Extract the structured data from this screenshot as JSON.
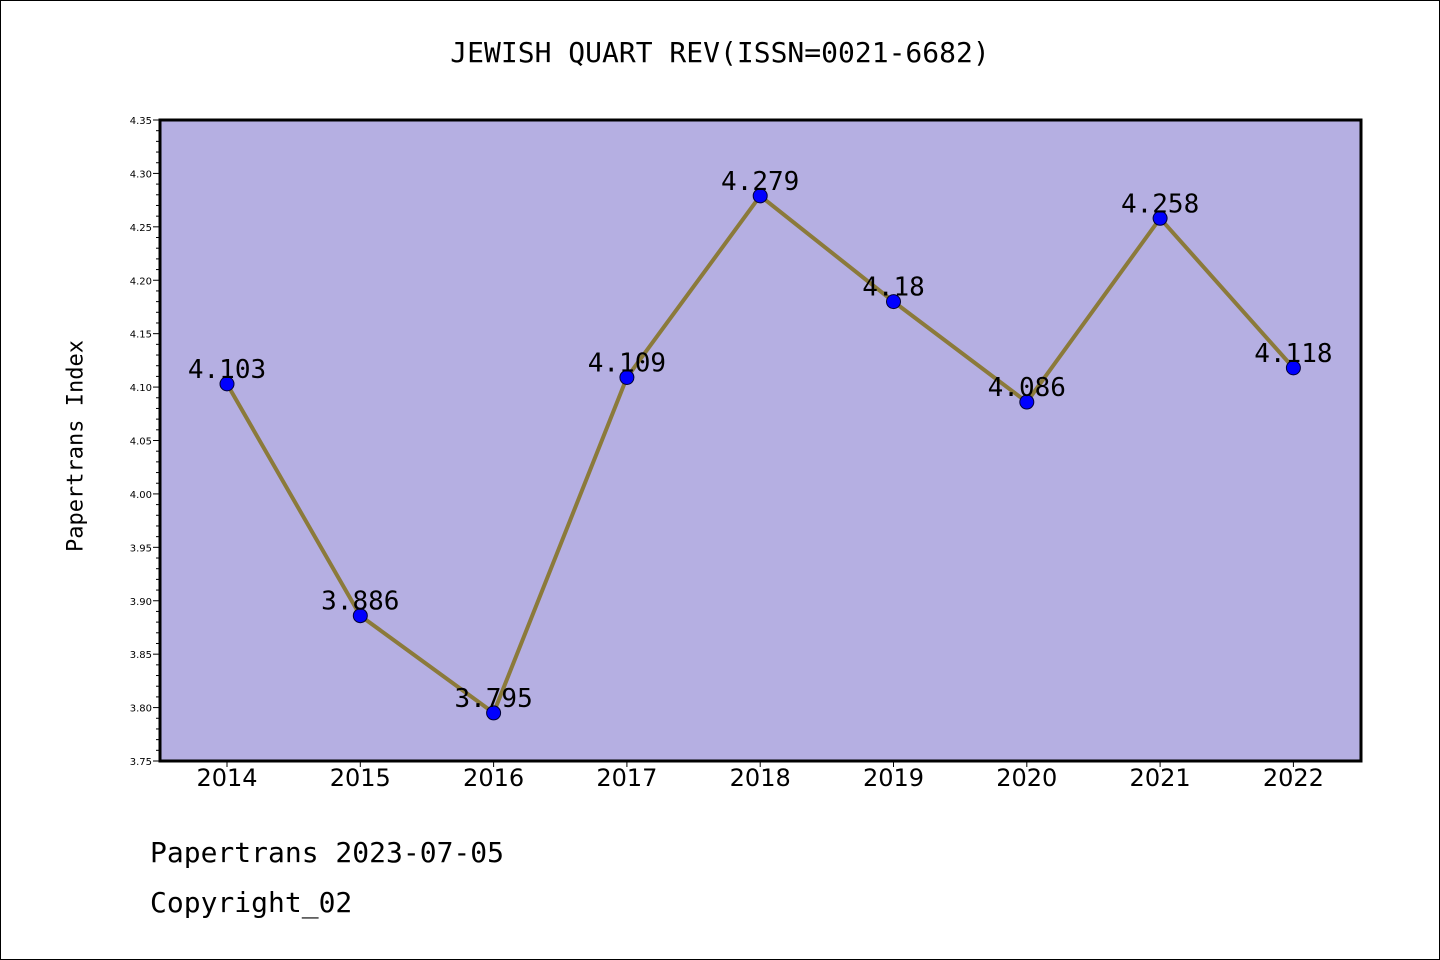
{
  "chart_data": {
    "type": "line",
    "title": "JEWISH QUART REV(ISSN=0021-6682)",
    "xlabel": "",
    "ylabel": "Papertrans Index",
    "categories": [
      "2014",
      "2015",
      "2016",
      "2017",
      "2018",
      "2019",
      "2020",
      "2021",
      "2022"
    ],
    "series": [
      {
        "values": [
          4.103,
          3.886,
          3.795,
          4.109,
          4.279,
          4.18,
          4.086,
          4.258,
          4.118
        ]
      }
    ],
    "data_labels": [
      "4.103",
      "3.886",
      "3.795",
      "4.109",
      "4.279",
      "4.18",
      "4.086",
      "4.258",
      "4.118"
    ],
    "ylim": [
      3.75,
      4.35
    ],
    "yticks": [
      "3.75",
      "3.80",
      "3.85",
      "3.90",
      "3.95",
      "4.00",
      "4.05",
      "4.10",
      "4.15",
      "4.20",
      "4.25",
      "4.30",
      "4.35"
    ],
    "grid": false,
    "legend": "none",
    "colors": {
      "plot_background": "#b5afe2",
      "line": "#8b7a3a",
      "marker": "#0000ff",
      "axis": "#000000"
    }
  },
  "footer": {
    "date": "Papertrans 2023-07-05",
    "copyright": "Copyright_02"
  }
}
